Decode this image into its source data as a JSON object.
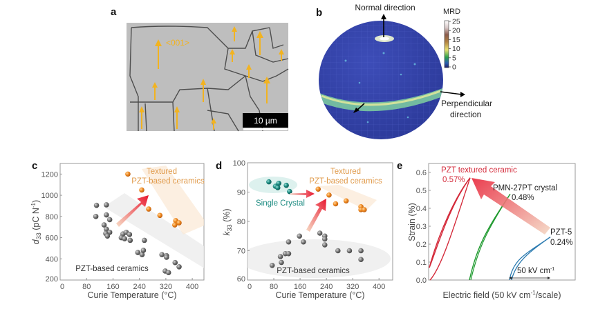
{
  "panels": {
    "a": {
      "letter": "a",
      "orientation_label": "<001>",
      "scale_bar": "10 µm",
      "arrow_color": "#f2b320"
    },
    "b": {
      "letter": "b",
      "normal_label": "Normal direction",
      "perp_label_1": "Perpendicular",
      "perp_label_2": "direction",
      "colorbar_title": "MRD",
      "colorbar_ticks": [
        "25",
        "20",
        "15",
        "10",
        "5",
        "0"
      ]
    }
  },
  "chart_data": [
    {
      "id": "c",
      "letter": "c",
      "type": "scatter",
      "xlabel": "Curie Temperature (°C)",
      "ylabel_main": "d",
      "ylabel_sub": "33",
      "ylabel_rest": " (pC N",
      "ylabel_sup": "-1",
      "ylabel_close": ")",
      "xlim": [
        0,
        450
      ],
      "ylim": [
        200,
        1300
      ],
      "xticks": [
        0,
        80,
        160,
        240,
        320,
        400
      ],
      "yticks": [
        200,
        400,
        600,
        800,
        1000,
        1200
      ],
      "annotations": {
        "textured_1": "Textured",
        "textured_2": "PZT-based ceramics",
        "pzt": "PZT-based ceramics"
      },
      "series": [
        {
          "name": "PZT-based ceramics",
          "color": "#7f7f7f",
          "points": [
            [
              110,
              905
            ],
            [
              140,
              910
            ],
            [
              108,
              800
            ],
            [
              140,
              815
            ],
            [
              150,
              770
            ],
            [
              133,
              720
            ],
            [
              140,
              680
            ],
            [
              150,
              650
            ],
            [
              138,
              640
            ],
            [
              143,
              615
            ],
            [
              190,
              635
            ],
            [
              200,
              650
            ],
            [
              210,
              630
            ],
            [
              185,
              600
            ],
            [
              195,
              590
            ],
            [
              212,
              575
            ],
            [
              255,
              575
            ],
            [
              235,
              460
            ],
            [
              248,
              440
            ],
            [
              252,
              480
            ],
            [
              308,
              440
            ],
            [
              322,
              430
            ],
            [
              322,
              415
            ],
            [
              348,
              365
            ],
            [
              360,
              325
            ],
            [
              318,
              285
            ],
            [
              328,
              270
            ]
          ]
        },
        {
          "name": "Textured PZT-based ceramics",
          "color": "#e8801e",
          "points": [
            [
              205,
              1200
            ],
            [
              247,
              1050
            ],
            [
              268,
              870
            ],
            [
              302,
              810
            ],
            [
              350,
              760
            ],
            [
              347,
              720
            ],
            [
              360,
              740
            ]
          ]
        }
      ]
    },
    {
      "id": "d",
      "letter": "d",
      "type": "scatter",
      "xlabel": "Curie Temperature (°C)",
      "ylabel_main": "k",
      "ylabel_sub": "33",
      "ylabel_rest": " (%)",
      "xlim": [
        0,
        450
      ],
      "ylim": [
        60,
        100
      ],
      "xticks": [
        0,
        80,
        160,
        240,
        320,
        400
      ],
      "yticks": [
        60,
        70,
        80,
        90,
        100
      ],
      "annotations": {
        "single_crystal": "Single Crystal",
        "textured_1": "Textured",
        "textured_2": "PZT-based ceramics",
        "pzt": "PZT-based ceramics"
      },
      "series": [
        {
          "name": "Single Crystal",
          "color": "#1a8a80",
          "points": [
            [
              65,
              93.5
            ],
            [
              85,
              92
            ],
            [
              92,
              91.5
            ],
            [
              95,
              93
            ],
            [
              118,
              92.3
            ],
            [
              128,
              90.2
            ]
          ]
        },
        {
          "name": "Textured PZT-based ceramics",
          "color": "#e8801e",
          "points": [
            [
              215,
              91
            ],
            [
              248,
              89
            ],
            [
              268,
              86
            ],
            [
              300,
              87
            ],
            [
              345,
              85
            ],
            [
              345,
              84
            ],
            [
              355,
              84
            ]
          ]
        },
        {
          "name": "PZT-based ceramics",
          "color": "#7f7f7f",
          "points": [
            [
              75,
              65
            ],
            [
              100,
              68
            ],
            [
              103,
              66
            ],
            [
              115,
              69
            ],
            [
              125,
              69
            ],
            [
              125,
              73
            ],
            [
              158,
              75
            ],
            [
              170,
              73
            ],
            [
              220,
              76
            ],
            [
              235,
              75
            ],
            [
              235,
              74
            ],
            [
              235,
              72
            ],
            [
              275,
              70
            ],
            [
              310,
              70
            ],
            [
              345,
              70
            ],
            [
              345,
              67
            ]
          ]
        }
      ]
    },
    {
      "id": "e",
      "letter": "e",
      "type": "line",
      "xlabel_pre": "Electric field (50 kV cm",
      "xlabel_sup": "-1",
      "xlabel_post": "/scale)",
      "ylabel": "Strain (%)",
      "ylim": [
        0,
        0.65
      ],
      "yticks": [
        "0.0",
        "0.1",
        "0.2",
        "0.3",
        "0.4",
        "0.5",
        "0.6"
      ],
      "scale_label_pre": "50 kV cm",
      "scale_label_sup": "-1",
      "series": [
        {
          "name": "PZT textured ceramic",
          "label": "PZT textured ceramic",
          "peak_label": "0.57%",
          "peak_strain": 0.57,
          "color": "#d42a3a"
        },
        {
          "name": "PMN-27PT crystal",
          "label": "PMN-27PT crystal",
          "peak_label": "0.48%",
          "peak_strain": 0.48,
          "color": "#1f9a2f"
        },
        {
          "name": "PZT-5",
          "label": "PZT-5",
          "peak_label": "0.24%",
          "peak_strain": 0.24,
          "color": "#2a7ab0"
        }
      ]
    }
  ]
}
